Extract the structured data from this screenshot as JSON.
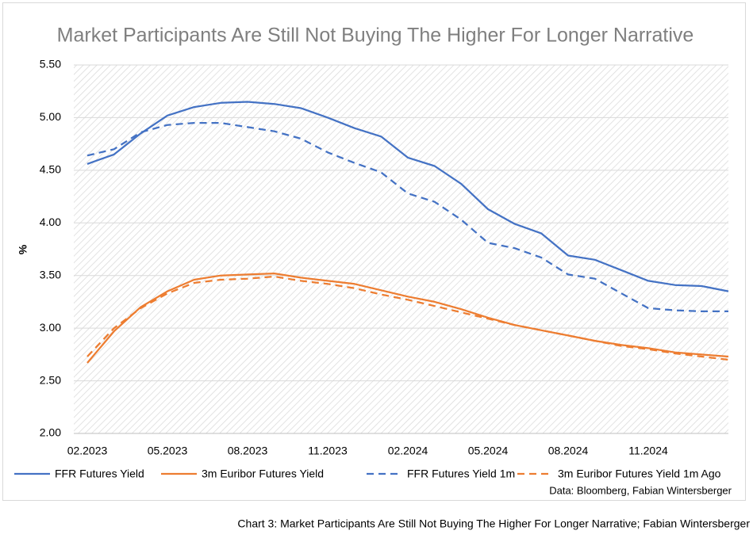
{
  "chart_data": {
    "type": "line",
    "title": "Market Participants Are Still Not Buying The Higher For Longer Narrative",
    "y_label": "%",
    "source": "Data: Bloomberg, Fabian Wintersberger",
    "caption": "Chart 3: Market Participants Are Still Not Buying The Higher For Longer Narrative; Fabian Wintersberger",
    "categories": [
      "02.2023",
      null,
      null,
      "05.2023",
      null,
      null,
      "08.2023",
      null,
      null,
      "11.2023",
      null,
      null,
      "02.2024",
      null,
      null,
      "05.2024",
      null,
      null,
      "08.2024",
      null,
      null,
      "11.2024",
      null,
      null,
      null
    ],
    "series": [
      {
        "name": "FFR Futures Yield",
        "color": "#4472c4",
        "dashed": false,
        "values": [
          4.56,
          4.65,
          4.85,
          5.02,
          5.1,
          5.14,
          5.15,
          5.13,
          5.09,
          5.0,
          4.9,
          4.82,
          4.62,
          4.54,
          4.37,
          4.13,
          3.99,
          3.9,
          3.69,
          3.65,
          3.55,
          3.45,
          3.41,
          3.4,
          3.35
        ]
      },
      {
        "name": "3m Euribor Futures Yield",
        "color": "#ed7d31",
        "dashed": false,
        "values": [
          2.67,
          2.97,
          3.2,
          3.35,
          3.46,
          3.5,
          3.51,
          3.52,
          3.48,
          3.45,
          3.42,
          3.36,
          3.3,
          3.25,
          3.18,
          3.1,
          3.03,
          2.98,
          2.93,
          2.88,
          2.84,
          2.81,
          2.77,
          2.75,
          2.73
        ]
      },
      {
        "name": "FFR Futures Yield 1m",
        "color": "#4472c4",
        "dashed": true,
        "values": [
          4.64,
          4.7,
          4.86,
          4.93,
          4.95,
          4.95,
          4.91,
          4.87,
          4.8,
          4.67,
          4.57,
          4.48,
          4.28,
          4.2,
          4.03,
          3.81,
          3.76,
          3.67,
          3.51,
          3.47,
          3.33,
          3.19,
          3.17,
          3.16,
          3.16
        ]
      },
      {
        "name": "3m Euribor Futures Yield 1m Ago",
        "color": "#ed7d31",
        "dashed": true,
        "values": [
          2.73,
          3.0,
          3.19,
          3.33,
          3.43,
          3.46,
          3.47,
          3.49,
          3.45,
          3.42,
          3.38,
          3.32,
          3.27,
          3.21,
          3.15,
          3.09,
          3.03,
          2.98,
          2.93,
          2.88,
          2.83,
          2.8,
          2.76,
          2.73,
          2.7
        ]
      }
    ],
    "ylim": [
      2,
      5.5
    ],
    "yticks": [
      {
        "value": 2,
        "label": "2.00"
      },
      {
        "value": 2.5,
        "label": "2.50"
      },
      {
        "value": 3,
        "label": "3.00"
      },
      {
        "value": 3.5,
        "label": "3.50"
      },
      {
        "value": 4,
        "label": "4.00"
      },
      {
        "value": 4.5,
        "label": "4.50"
      },
      {
        "value": 5,
        "label": "5.00"
      },
      {
        "value": 5.5,
        "label": "5.50"
      }
    ],
    "grid": true
  }
}
